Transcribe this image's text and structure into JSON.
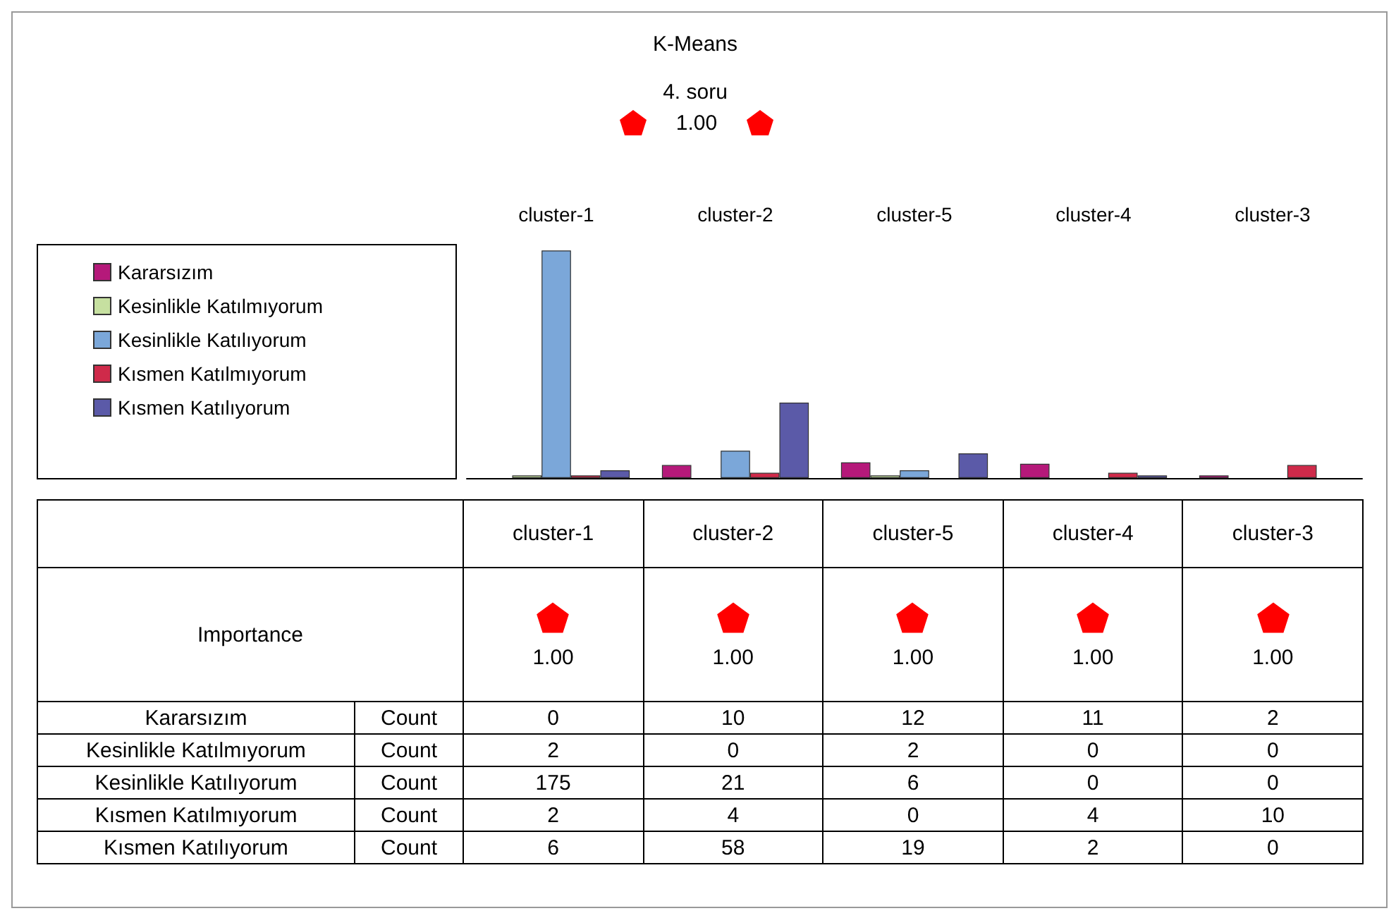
{
  "chart_data": {
    "type": "bar",
    "title": "K-Means",
    "subtitle": "4. soru",
    "categories": [
      "cluster-1",
      "cluster-2",
      "cluster-5",
      "cluster-4",
      "cluster-3"
    ],
    "series": [
      {
        "name": "Kararsızım",
        "color": "#b5197a",
        "values": [
          0,
          10,
          12,
          11,
          2
        ]
      },
      {
        "name": "Kesinlikle Katılmıyorum",
        "color": "#c6e0a0",
        "values": [
          2,
          0,
          2,
          0,
          0
        ]
      },
      {
        "name": "Kesinlikle Katılıyorum",
        "color": "#7ba7d9",
        "values": [
          175,
          21,
          6,
          0,
          0
        ]
      },
      {
        "name": "Kısmen Katılmıyorum",
        "color": "#cf2a4a",
        "values": [
          2,
          4,
          0,
          4,
          10
        ]
      },
      {
        "name": "Kısmen Katılıyorum",
        "color": "#5b5aa8",
        "values": [
          6,
          58,
          19,
          2,
          0
        ]
      }
    ],
    "annotations": [
      "1.00",
      "Importance",
      "1.00",
      "1.00",
      "1.00",
      "1.00",
      "1.00",
      "Count",
      "Count",
      "Count",
      "Count",
      "Count"
    ],
    "data_labels": true,
    "grid": false,
    "legend": "left"
  }
}
